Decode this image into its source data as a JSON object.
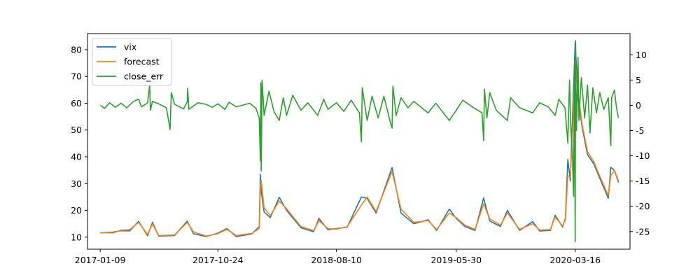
{
  "chart_data": {
    "type": "line",
    "x_type": "date",
    "xticks": [
      "2017-01-09",
      "2017-10-24",
      "2018-08-10",
      "2019-05-30",
      "2020-03-16"
    ],
    "xlim": [
      "2016-12-09",
      "2020-07-28"
    ],
    "left_axis": {
      "ylim": [
        5.5,
        86
      ],
      "ticks": [
        10,
        20,
        30,
        40,
        50,
        60,
        70,
        80
      ]
    },
    "right_axis": {
      "ylim": [
        -28.5,
        14.2
      ],
      "ticks": [
        -25,
        -20,
        -15,
        -10,
        -5,
        0,
        5,
        10
      ]
    },
    "legend": {
      "position": "top-left",
      "entries": [
        "vix",
        "forecast",
        "close_err"
      ]
    },
    "grid": false,
    "series": [
      {
        "name": "vix",
        "axis": "left",
        "color": "#1f77b4",
        "points": [
          [
            "2017-01-09",
            11.6
          ],
          [
            "2017-02-10",
            11.9
          ],
          [
            "2017-03-01",
            12.4
          ],
          [
            "2017-03-22",
            12.3
          ],
          [
            "2017-04-13",
            15.9
          ],
          [
            "2017-05-05",
            10.5
          ],
          [
            "2017-05-17",
            15.6
          ],
          [
            "2017-06-01",
            10.4
          ],
          [
            "2017-07-10",
            10.6
          ],
          [
            "2017-08-10",
            16.0
          ],
          [
            "2017-08-25",
            11.3
          ],
          [
            "2017-09-25",
            10.2
          ],
          [
            "2017-10-24",
            11.5
          ],
          [
            "2017-11-15",
            13.2
          ],
          [
            "2017-12-08",
            10.2
          ],
          [
            "2018-01-15",
            11.2
          ],
          [
            "2018-02-02",
            14.0
          ],
          [
            "2018-02-05",
            33.5
          ],
          [
            "2018-02-07",
            27.0
          ],
          [
            "2018-02-14",
            19.4
          ],
          [
            "2018-03-01",
            17.3
          ],
          [
            "2018-03-23",
            24.9
          ],
          [
            "2018-04-10",
            20.0
          ],
          [
            "2018-05-15",
            13.5
          ],
          [
            "2018-06-15",
            12.0
          ],
          [
            "2018-06-28",
            17.0
          ],
          [
            "2018-07-20",
            12.8
          ],
          [
            "2018-08-10",
            13.2
          ],
          [
            "2018-09-05",
            13.7
          ],
          [
            "2018-10-10",
            25.0
          ],
          [
            "2018-10-24",
            24.5
          ],
          [
            "2018-11-15",
            19.0
          ],
          [
            "2018-12-24",
            36.0
          ],
          [
            "2019-01-15",
            19.0
          ],
          [
            "2019-02-15",
            15.0
          ],
          [
            "2019-03-22",
            16.5
          ],
          [
            "2019-04-12",
            12.5
          ],
          [
            "2019-05-13",
            20.5
          ],
          [
            "2019-05-30",
            17.0
          ],
          [
            "2019-06-20",
            14.0
          ],
          [
            "2019-07-15",
            12.5
          ],
          [
            "2019-08-05",
            24.6
          ],
          [
            "2019-08-20",
            16.0
          ],
          [
            "2019-09-15",
            14.0
          ],
          [
            "2019-10-02",
            20.0
          ],
          [
            "2019-11-01",
            12.5
          ],
          [
            "2019-12-03",
            15.8
          ],
          [
            "2019-12-20",
            12.3
          ],
          [
            "2020-01-15",
            12.5
          ],
          [
            "2020-01-27",
            18.2
          ],
          [
            "2020-02-14",
            13.8
          ],
          [
            "2020-02-21",
            17.0
          ],
          [
            "2020-02-27",
            39.0
          ],
          [
            "2020-03-04",
            31.0
          ],
          [
            "2020-03-09",
            54.0
          ],
          [
            "2020-03-16",
            82.7
          ],
          [
            "2020-03-23",
            61.6
          ],
          [
            "2020-04-02",
            50.9
          ],
          [
            "2020-04-15",
            40.8
          ],
          [
            "2020-05-01",
            37.2
          ],
          [
            "2020-05-15",
            32.0
          ],
          [
            "2020-06-05",
            24.5
          ],
          [
            "2020-06-11",
            36.1
          ],
          [
            "2020-06-20",
            34.9
          ],
          [
            "2020-06-30",
            30.4
          ]
        ]
      },
      {
        "name": "forecast",
        "axis": "left",
        "color": "#ff7f0e",
        "points": [
          [
            "2017-01-09",
            11.7
          ],
          [
            "2017-02-10",
            11.6
          ],
          [
            "2017-03-01",
            12.6
          ],
          [
            "2017-03-22",
            12.8
          ],
          [
            "2017-04-13",
            15.5
          ],
          [
            "2017-05-05",
            11.0
          ],
          [
            "2017-05-17",
            14.9
          ],
          [
            "2017-06-01",
            10.6
          ],
          [
            "2017-07-10",
            10.8
          ],
          [
            "2017-08-10",
            15.5
          ],
          [
            "2017-08-25",
            12.0
          ],
          [
            "2017-09-25",
            10.4
          ],
          [
            "2017-10-24",
            11.3
          ],
          [
            "2017-11-15",
            12.9
          ],
          [
            "2017-12-08",
            10.6
          ],
          [
            "2018-01-15",
            11.4
          ],
          [
            "2018-02-02",
            13.2
          ],
          [
            "2018-02-05",
            28.0
          ],
          [
            "2018-02-07",
            31.0
          ],
          [
            "2018-02-14",
            21.0
          ],
          [
            "2018-03-01",
            18.0
          ],
          [
            "2018-03-23",
            23.5
          ],
          [
            "2018-04-10",
            20.6
          ],
          [
            "2018-05-15",
            14.0
          ],
          [
            "2018-06-15",
            12.4
          ],
          [
            "2018-06-28",
            16.2
          ],
          [
            "2018-07-20",
            13.2
          ],
          [
            "2018-08-10",
            13.0
          ],
          [
            "2018-09-05",
            13.9
          ],
          [
            "2018-10-10",
            22.0
          ],
          [
            "2018-10-24",
            25.0
          ],
          [
            "2018-11-15",
            19.6
          ],
          [
            "2018-12-24",
            34.5
          ],
          [
            "2019-01-15",
            20.5
          ],
          [
            "2019-02-15",
            15.5
          ],
          [
            "2019-03-22",
            16.2
          ],
          [
            "2019-04-12",
            12.9
          ],
          [
            "2019-05-13",
            19.0
          ],
          [
            "2019-05-30",
            17.3
          ],
          [
            "2019-06-20",
            14.5
          ],
          [
            "2019-07-15",
            12.9
          ],
          [
            "2019-08-05",
            22.5
          ],
          [
            "2019-08-20",
            16.8
          ],
          [
            "2019-09-15",
            14.5
          ],
          [
            "2019-10-02",
            19.0
          ],
          [
            "2019-11-01",
            12.9
          ],
          [
            "2019-12-03",
            15.0
          ],
          [
            "2019-12-20",
            12.7
          ],
          [
            "2020-01-15",
            12.8
          ],
          [
            "2020-01-27",
            17.5
          ],
          [
            "2020-02-14",
            14.2
          ],
          [
            "2020-02-21",
            16.5
          ],
          [
            "2020-02-27",
            33.0
          ],
          [
            "2020-03-04",
            32.5
          ],
          [
            "2020-03-09",
            48.0
          ],
          [
            "2020-03-16",
            76.0
          ],
          [
            "2020-03-23",
            64.0
          ],
          [
            "2020-04-02",
            52.0
          ],
          [
            "2020-04-15",
            42.0
          ],
          [
            "2020-05-01",
            38.0
          ],
          [
            "2020-05-15",
            32.8
          ],
          [
            "2020-06-05",
            25.5
          ],
          [
            "2020-06-11",
            33.0
          ],
          [
            "2020-06-20",
            35.0
          ],
          [
            "2020-06-30",
            31.0
          ]
        ]
      },
      {
        "name": "close_err",
        "axis": "right",
        "color": "#2ca02c",
        "points": [
          [
            "2017-01-09",
            0.0
          ],
          [
            "2017-01-20",
            -0.6
          ],
          [
            "2017-02-01",
            0.5
          ],
          [
            "2017-02-15",
            -0.4
          ],
          [
            "2017-03-01",
            0.4
          ],
          [
            "2017-03-15",
            -0.5
          ],
          [
            "2017-04-01",
            0.8
          ],
          [
            "2017-04-13",
            1.2
          ],
          [
            "2017-04-20",
            -0.3
          ],
          [
            "2017-05-05",
            0.5
          ],
          [
            "2017-05-10",
            4.0
          ],
          [
            "2017-05-12",
            -1.0
          ],
          [
            "2017-05-17",
            0.8
          ],
          [
            "2017-06-01",
            0.3
          ],
          [
            "2017-06-20",
            -0.5
          ],
          [
            "2017-06-29",
            -4.8
          ],
          [
            "2017-07-02",
            2.5
          ],
          [
            "2017-07-10",
            0.2
          ],
          [
            "2017-08-01",
            -0.7
          ],
          [
            "2017-08-10",
            0.7
          ],
          [
            "2017-08-11",
            3.4
          ],
          [
            "2017-08-14",
            -0.8
          ],
          [
            "2017-09-05",
            0.5
          ],
          [
            "2017-09-25",
            0.2
          ],
          [
            "2017-10-10",
            -0.4
          ],
          [
            "2017-10-24",
            0.3
          ],
          [
            "2017-11-10",
            -0.8
          ],
          [
            "2017-11-20",
            0.6
          ],
          [
            "2017-12-08",
            -0.3
          ],
          [
            "2018-01-10",
            0.4
          ],
          [
            "2018-01-25",
            -0.6
          ],
          [
            "2018-02-02",
            -2.5
          ],
          [
            "2018-02-05",
            -11.0
          ],
          [
            "2018-02-06",
            4.5
          ],
          [
            "2018-02-07",
            -13.0
          ],
          [
            "2018-02-09",
            5.0
          ],
          [
            "2018-02-14",
            -2.0
          ],
          [
            "2018-02-26",
            2.8
          ],
          [
            "2018-03-10",
            -1.2
          ],
          [
            "2018-03-23",
            -3.0
          ],
          [
            "2018-04-02",
            1.5
          ],
          [
            "2018-04-10",
            -2.0
          ],
          [
            "2018-04-25",
            2.0
          ],
          [
            "2018-05-15",
            -1.0
          ],
          [
            "2018-06-01",
            0.5
          ],
          [
            "2018-06-25",
            -2.0
          ],
          [
            "2018-07-10",
            1.2
          ],
          [
            "2018-07-20",
            -0.8
          ],
          [
            "2018-08-10",
            0.5
          ],
          [
            "2018-08-28",
            -1.2
          ],
          [
            "2018-09-15",
            1.0
          ],
          [
            "2018-10-05",
            -1.5
          ],
          [
            "2018-10-10",
            -7.2
          ],
          [
            "2018-10-12",
            3.5
          ],
          [
            "2018-10-24",
            -3.0
          ],
          [
            "2018-11-05",
            1.8
          ],
          [
            "2018-11-20",
            -2.5
          ],
          [
            "2018-12-04",
            1.8
          ],
          [
            "2018-12-20",
            -3.5
          ],
          [
            "2018-12-24",
            -4.5
          ],
          [
            "2018-12-26",
            3.8
          ],
          [
            "2019-01-03",
            -2.0
          ],
          [
            "2019-01-15",
            1.5
          ],
          [
            "2019-02-01",
            -0.5
          ],
          [
            "2019-02-15",
            0.8
          ],
          [
            "2019-03-22",
            -1.5
          ],
          [
            "2019-04-10",
            0.4
          ],
          [
            "2019-05-13",
            -3.0
          ],
          [
            "2019-05-30",
            -1.0
          ],
          [
            "2019-06-15",
            1.0
          ],
          [
            "2019-07-10",
            -0.4
          ],
          [
            "2019-08-01",
            -1.5
          ],
          [
            "2019-08-05",
            -7.0
          ],
          [
            "2019-08-07",
            3.2
          ],
          [
            "2019-08-13",
            -2.5
          ],
          [
            "2019-08-20",
            2.5
          ],
          [
            "2019-09-05",
            -1.0
          ],
          [
            "2019-10-02",
            -3.0
          ],
          [
            "2019-10-10",
            1.5
          ],
          [
            "2019-11-01",
            -0.5
          ],
          [
            "2019-12-03",
            -1.5
          ],
          [
            "2019-12-20",
            0.5
          ],
          [
            "2020-01-10",
            -0.3
          ],
          [
            "2020-01-27",
            -2.0
          ],
          [
            "2020-02-05",
            1.2
          ],
          [
            "2020-02-14",
            0.2
          ],
          [
            "2020-02-20",
            -0.5
          ],
          [
            "2020-02-24",
            -4.5
          ],
          [
            "2020-02-27",
            -7.5
          ],
          [
            "2020-03-02",
            5.0
          ],
          [
            "2020-03-05",
            -4.0
          ],
          [
            "2020-03-09",
            -10.0
          ],
          [
            "2020-03-12",
            -18.0
          ],
          [
            "2020-03-14",
            8.0
          ],
          [
            "2020-03-16",
            -27.0
          ],
          [
            "2020-03-17",
            12.8
          ],
          [
            "2020-03-19",
            -5.0
          ],
          [
            "2020-03-23",
            9.5
          ],
          [
            "2020-03-25",
            -3.0
          ],
          [
            "2020-03-31",
            5.5
          ],
          [
            "2020-04-08",
            -2.5
          ],
          [
            "2020-04-15",
            4.0
          ],
          [
            "2020-04-21",
            -5.5
          ],
          [
            "2020-04-28",
            3.5
          ],
          [
            "2020-05-07",
            -1.5
          ],
          [
            "2020-05-15",
            2.5
          ],
          [
            "2020-05-25",
            -0.8
          ],
          [
            "2020-06-05",
            1.5
          ],
          [
            "2020-06-11",
            -8.0
          ],
          [
            "2020-06-13",
            1.5
          ],
          [
            "2020-06-20",
            3.0
          ],
          [
            "2020-06-25",
            -0.5
          ],
          [
            "2020-06-30",
            -2.5
          ]
        ]
      }
    ]
  }
}
